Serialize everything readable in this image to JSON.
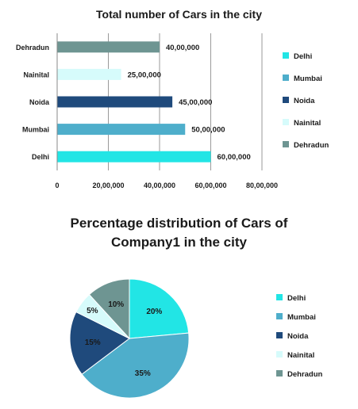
{
  "chart_data": [
    {
      "type": "bar",
      "orientation": "horizontal",
      "title": "Total number of Cars in the city",
      "categories": [
        "Dehradun",
        "Nainital",
        "Noida",
        "Mumbai",
        "Delhi"
      ],
      "values": [
        4000000,
        2500000,
        4500000,
        5000000,
        6000000
      ],
      "data_labels": [
        "40,00,000",
        "25,00,000",
        "45,00,000",
        "50,00,000",
        "60,00,000"
      ],
      "colors": [
        "#6e9592",
        "#d6fbfb",
        "#1f4a7c",
        "#4eaecb",
        "#22e5e5"
      ],
      "xlim": [
        0,
        8000000
      ],
      "xticks": [
        0,
        2000000,
        4000000,
        6000000,
        8000000
      ],
      "xtick_labels": [
        "0",
        "20,00,000",
        "40,00,000",
        "60,00,000",
        "80,00,000"
      ],
      "grid": true,
      "legend": {
        "position": "right",
        "entries": [
          "Delhi",
          "Mumbai",
          "Noida",
          "Nainital",
          "Dehradun"
        ],
        "colors": [
          "#22e5e5",
          "#4eaecb",
          "#1f4a7c",
          "#d6fbfb",
          "#6e9592"
        ]
      }
    },
    {
      "type": "pie",
      "title": "Percentage distribution of Cars of Company1 in the city",
      "categories": [
        "Delhi",
        "Mumbai",
        "Noida",
        "Nainital",
        "Dehradun"
      ],
      "values": [
        20,
        35,
        15,
        5,
        10
      ],
      "data_labels": [
        "20%",
        "35%",
        "15%",
        "5%",
        "10%"
      ],
      "colors": [
        "#22e5e5",
        "#4eaecb",
        "#1f4a7c",
        "#d6fbfb",
        "#6e9592"
      ],
      "legend": {
        "position": "right",
        "entries": [
          "Delhi",
          "Mumbai",
          "Noida",
          "Nainital",
          "Dehradun"
        ],
        "colors": [
          "#22e5e5",
          "#4eaecb",
          "#1f4a7c",
          "#d6fbfb",
          "#6e9592"
        ]
      }
    }
  ],
  "titles": {
    "bar": "Total number of Cars in the city",
    "pie_line1": "Percentage distribution of Cars of",
    "pie_line2": "Company1 in the city"
  }
}
